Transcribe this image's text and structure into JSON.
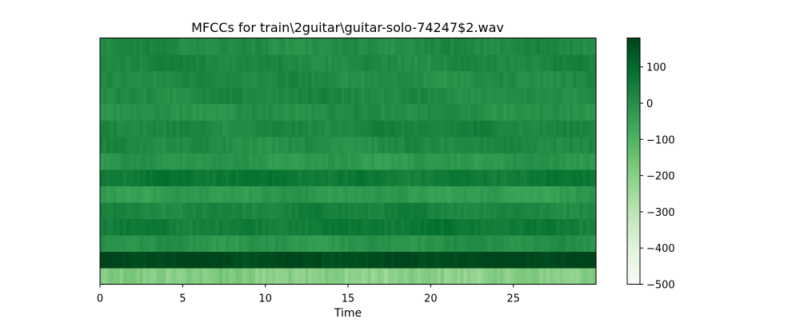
{
  "chart_data": {
    "type": "heatmap",
    "title": "MFCCs for train\\2guitar\\guitar-solo-74247$2.wav",
    "xlabel": "Time",
    "ylabel": "",
    "xlim": [
      0,
      30
    ],
    "x_ticks": [
      0,
      5,
      10,
      15,
      20,
      25
    ],
    "x_tick_labels": [
      "0",
      "5",
      "10",
      "15",
      "20",
      "25"
    ],
    "n_coefficients": 15,
    "n_frames": 150,
    "coefficient_means": [
      -200,
      170,
      -10,
      55,
      30,
      -30,
      60,
      -20,
      10,
      25,
      0,
      15,
      10,
      20,
      10
    ],
    "colormap": "Greens",
    "colorbar": {
      "min": -500,
      "max": 180,
      "ticks": [
        100,
        0,
        -100,
        -200,
        -300,
        -400,
        -500
      ],
      "tick_labels": [
        "100",
        "0",
        "−100",
        "−200",
        "−300",
        "−400",
        "−500"
      ]
    }
  }
}
